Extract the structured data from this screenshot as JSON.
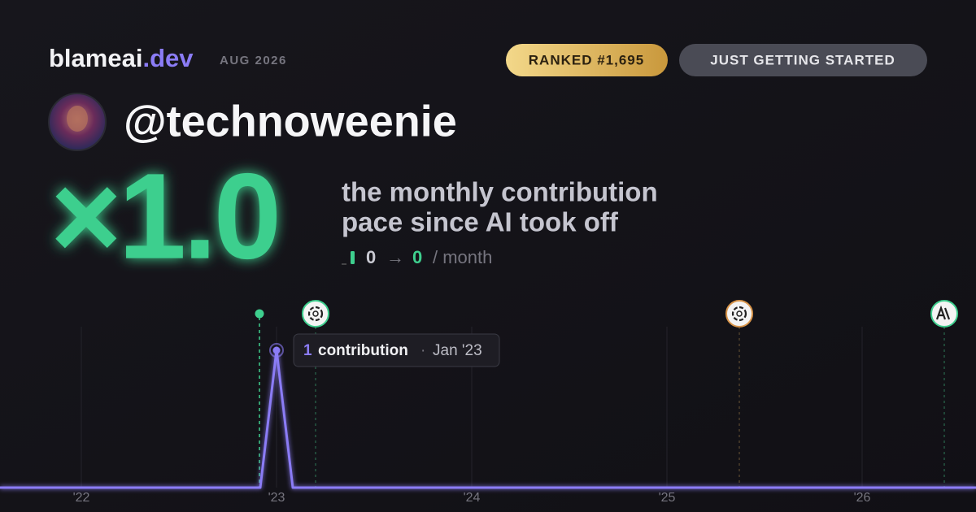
{
  "header": {
    "brand": "blameai",
    "brand_suffix": ".dev",
    "date": "AUG 2026",
    "rank_badge": "RANKED #1,695",
    "status_badge": "JUST GETTING STARTED"
  },
  "profile": {
    "handle": "@technoweenie"
  },
  "headline": {
    "multiplier": "×1.0",
    "caption_lines": [
      "the monthly contribution",
      "pace since AI took off"
    ],
    "before": "0",
    "arrow": "→",
    "after": "0",
    "unit": "/ month"
  },
  "chart_data": {
    "type": "line",
    "color": "#8b7cf6",
    "ylim": [
      0,
      1
    ],
    "categories": [
      null,
      null,
      null,
      null,
      null,
      "'22",
      null,
      null,
      null,
      null,
      null,
      null,
      null,
      null,
      null,
      null,
      null,
      "'23",
      null,
      null,
      null,
      null,
      null,
      null,
      null,
      null,
      null,
      null,
      null,
      "'24",
      null,
      null,
      null,
      null,
      null,
      null,
      null,
      null,
      null,
      null,
      null,
      "'25",
      null,
      null,
      null,
      null,
      null,
      null,
      null,
      null,
      null,
      null,
      null,
      "'26",
      null,
      null,
      null,
      null,
      null,
      null,
      null
    ],
    "values": [
      0,
      0,
      0,
      0,
      0,
      0,
      0,
      0,
      0,
      0,
      0,
      0,
      0,
      0,
      0,
      0,
      0,
      1,
      0,
      0,
      0,
      0,
      0,
      0,
      0,
      0,
      0,
      0,
      0,
      0,
      0,
      0,
      0,
      0,
      0,
      0,
      0,
      0,
      0,
      0,
      0,
      0,
      0,
      0,
      0,
      0,
      0,
      0,
      0,
      0,
      0,
      0,
      0,
      0,
      0,
      0,
      0,
      0,
      0,
      0,
      0
    ],
    "tooltip": {
      "unit": "contribution",
      "separator": "·",
      "date": "Jan '23"
    }
  }
}
